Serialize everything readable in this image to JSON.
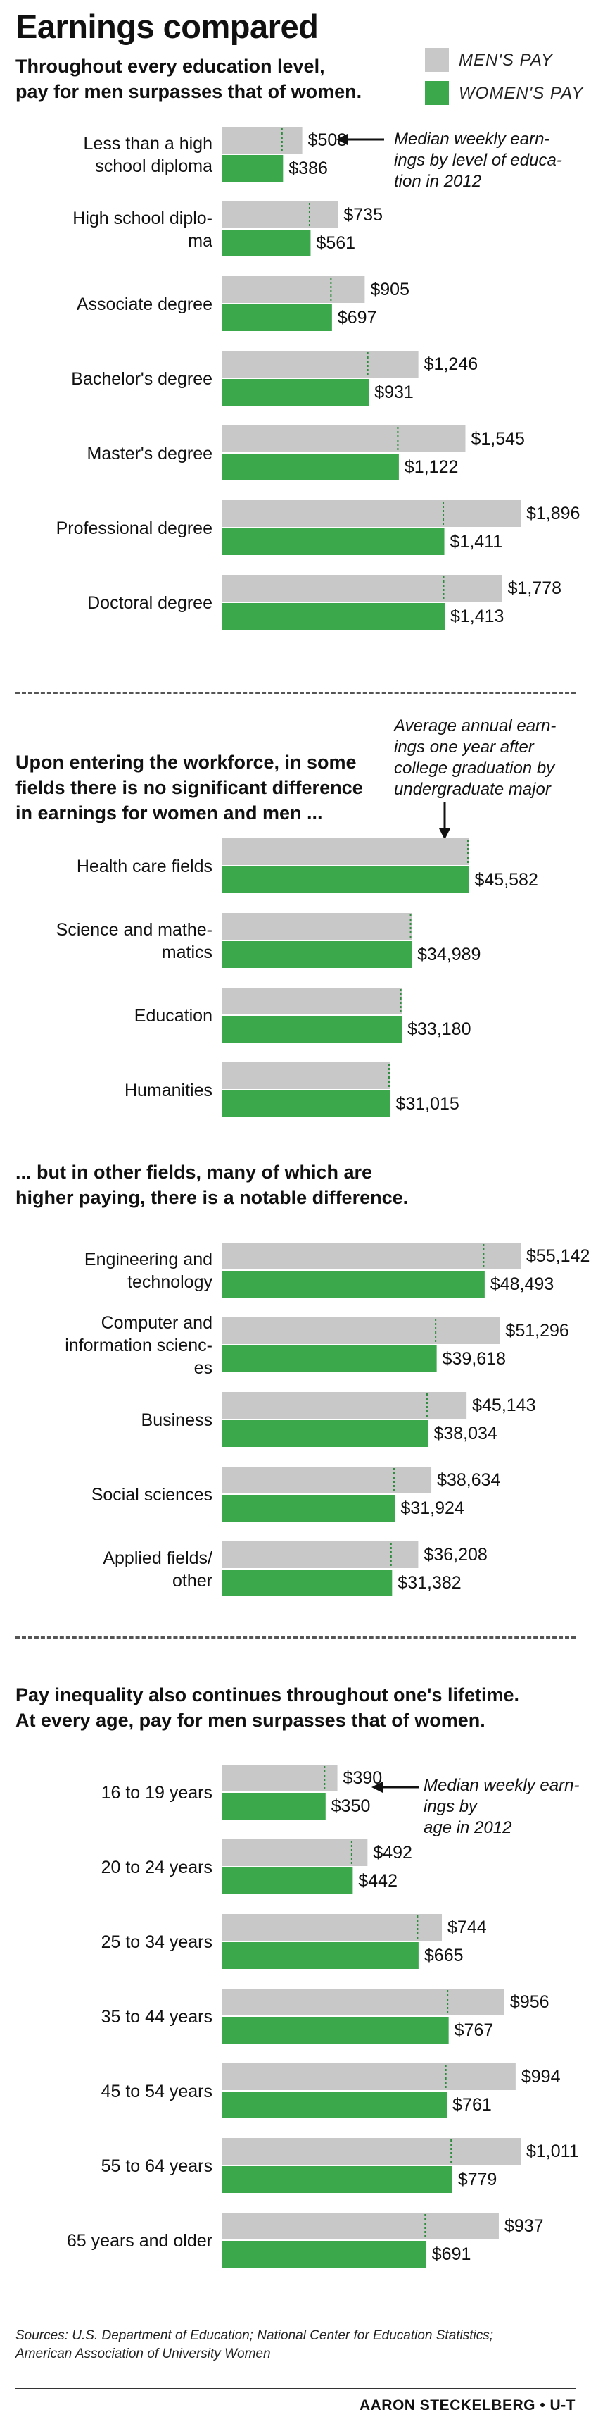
{
  "title": "Earnings compared",
  "legend": {
    "men_label": "MEN'S PAY",
    "women_label": "WOMEN'S PAY",
    "men_color": "#c8c8c8",
    "women_color": "#3ca84c",
    "marker_color": "#2e8b3d"
  },
  "sections": {
    "education": {
      "subtitle": [
        "Throughout every education level,",
        "pay for men surpasses that of women."
      ],
      "note": [
        "Median weekly earn-",
        "ings by level of educa-",
        "tion in 2012"
      ]
    },
    "major_equal": {
      "subtitle": [
        "Upon entering the workforce, in some",
        "fields there is no significant difference",
        "in earnings for women and men ..."
      ],
      "note": [
        "Average annual earn-",
        "ings one year after",
        "college graduation by",
        "undergraduate major"
      ]
    },
    "major_diff": {
      "subtitle": [
        "... but in other fields, many of which are",
        "higher paying, there is a notable difference."
      ]
    },
    "age": {
      "subtitle": [
        "Pay inequality also continues throughout one's lifetime.",
        "At every age, pay for men surpasses that of women."
      ],
      "note": [
        "Median weekly earn-",
        "ings by",
        "age in 2012"
      ]
    }
  },
  "chart_data": [
    {
      "type": "bar",
      "orientation": "horizontal",
      "categories": [
        [
          "Less than a high",
          "school diploma"
        ],
        [
          "High school diplo-",
          "ma"
        ],
        [
          "Associate degree"
        ],
        [
          "Bachelor's degree"
        ],
        [
          "Master's degree"
        ],
        [
          "Professional degree"
        ],
        [
          "Doctoral degree"
        ]
      ],
      "series": [
        {
          "name": "MEN'S PAY",
          "values": [
            508,
            735,
            905,
            1246,
            1545,
            1896,
            1778
          ],
          "labels": [
            "$508",
            "$735",
            "$905",
            "$1,246",
            "$1,545",
            "$1,896",
            "$1,778"
          ]
        },
        {
          "name": "WOMEN'S PAY",
          "values": [
            386,
            561,
            697,
            931,
            1122,
            1411,
            1413
          ],
          "labels": [
            "$386",
            "$561",
            "$697",
            "$931",
            "$1,122",
            "$1,411",
            "$1,413"
          ]
        }
      ],
      "xlim": [
        0,
        1896
      ]
    },
    {
      "type": "bar",
      "orientation": "horizontal",
      "categories": [
        [
          "Health care fields"
        ],
        [
          "Science and mathe-",
          "matics"
        ],
        [
          "Education"
        ],
        [
          "Humanities"
        ]
      ],
      "series": [
        {
          "name": "MEN'S PAY",
          "values": [
            45582,
            34989,
            33180,
            31015
          ],
          "labels": [
            "",
            "",
            "",
            ""
          ]
        },
        {
          "name": "WOMEN'S PAY",
          "values": [
            45582,
            34989,
            33180,
            31015
          ],
          "labels": [
            "$45,582",
            "$34,989",
            "$33,180",
            "$31,015"
          ]
        }
      ],
      "xlim": [
        0,
        55142
      ]
    },
    {
      "type": "bar",
      "orientation": "horizontal",
      "categories": [
        [
          "Engineering and",
          "technology"
        ],
        [
          "Computer and",
          "information scienc-",
          "es"
        ],
        [
          "Business"
        ],
        [
          "Social sciences"
        ],
        [
          "Applied fields/",
          "other"
        ]
      ],
      "series": [
        {
          "name": "MEN'S PAY",
          "values": [
            55142,
            51296,
            45143,
            38634,
            36208
          ],
          "labels": [
            "$55,142",
            "$51,296",
            "$45,143",
            "$38,634",
            "$36,208"
          ]
        },
        {
          "name": "WOMEN'S PAY",
          "values": [
            48493,
            39618,
            38034,
            31924,
            31382
          ],
          "labels": [
            "$48,493",
            "$39,618",
            "$38,034",
            "$31,924",
            "$31,382"
          ]
        }
      ],
      "xlim": [
        0,
        55142
      ]
    },
    {
      "type": "bar",
      "orientation": "horizontal",
      "categories": [
        [
          "16 to 19 years"
        ],
        [
          "20 to 24 years"
        ],
        [
          "25 to 34 years"
        ],
        [
          "35 to 44 years"
        ],
        [
          "45 to 54 years"
        ],
        [
          "55 to 64 years"
        ],
        [
          "65 years and older"
        ]
      ],
      "series": [
        {
          "name": "MEN'S PAY",
          "values": [
            390,
            492,
            744,
            956,
            994,
            1011,
            937
          ],
          "labels": [
            "$390",
            "$492",
            "$744",
            "$956",
            "$994",
            "$1,011",
            "$937"
          ]
        },
        {
          "name": "WOMEN'S PAY",
          "values": [
            350,
            442,
            665,
            767,
            761,
            779,
            691
          ],
          "labels": [
            "$350",
            "$442",
            "$665",
            "$767",
            "$761",
            "$779",
            "$691"
          ]
        }
      ],
      "xlim": [
        0,
        1011
      ]
    }
  ],
  "sources": [
    "Sources: U.S. Department of Education; National Center for Education Statistics;",
    "American Association of University Women"
  ],
  "credit": "AARON STECKELBERG • U-T"
}
